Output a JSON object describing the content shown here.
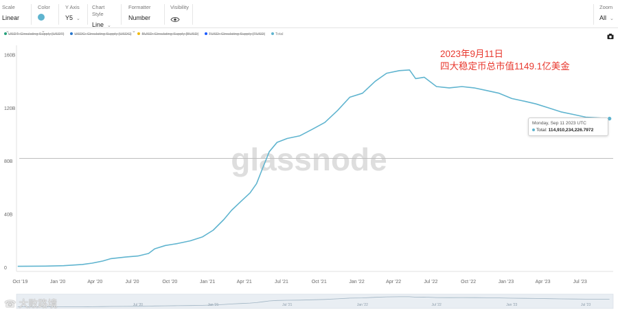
{
  "toolbar": {
    "scale": {
      "label": "Scale",
      "value": "Linear"
    },
    "color": {
      "label": "Color",
      "value_color": "#5fb4cf"
    },
    "y_axis": {
      "label": "Y Axis",
      "value": "Y5"
    },
    "chart_style": {
      "label": "Chart Style",
      "value": "Line"
    },
    "formatter": {
      "label": "Formatter",
      "value": "Number"
    },
    "visibility": {
      "label": "Visibility"
    },
    "zoom": {
      "label": "Zoom",
      "value": "All"
    }
  },
  "legend": [
    {
      "label": "USDT: Circulating Supply [USDT]",
      "color": "#26a17b",
      "active": false
    },
    {
      "label": "USDC: Circulating Supply [USDC]",
      "color": "#2775ca",
      "active": false
    },
    {
      "label": "BUSD: Circulating Supply [BUSD]",
      "color": "#f0b90b",
      "active": false
    },
    {
      "label": "TUSD: Circulating Supply [TUSD]",
      "color": "#1a5aff",
      "active": false
    },
    {
      "label": "Total",
      "color": "#5fb4cf",
      "active": true
    }
  ],
  "annotation": {
    "line1": "2023年9月11日",
    "line2": "四大稳定币总市值1149.1亿美金"
  },
  "tooltip": {
    "date": "Monday, Sep 11 2023 UTC",
    "label": "Total:",
    "value": "114,910,234,226.7972"
  },
  "watermark": {
    "text": "glassnode",
    "corner_text": "大败路境"
  },
  "navigator": {
    "labels": [
      "Jul '20",
      "Jan '21",
      "Jul '21",
      "Jan '22",
      "Jul '22",
      "Jan '23",
      "Jul '23"
    ]
  },
  "chart_data": {
    "type": "line",
    "series_name": "Total",
    "color": "#5fb4cf",
    "y_unit": "USD",
    "ylim": [
      0,
      170
    ],
    "y_ticks": [
      0,
      40,
      80,
      120,
      160
    ],
    "y_tick_labels": [
      "0",
      "40B",
      "80B",
      "120B",
      "160B"
    ],
    "x_tick_dates": [
      "2019-10-01",
      "2020-01-01",
      "2020-04-01",
      "2020-07-01",
      "2020-10-01",
      "2021-01-01",
      "2021-04-01",
      "2021-07-01",
      "2021-10-01",
      "2022-01-01",
      "2022-04-01",
      "2022-07-01",
      "2022-10-01",
      "2023-01-01",
      "2023-04-01",
      "2023-07-01"
    ],
    "x_tick_labels": [
      "Oct '19",
      "Jan '20",
      "Apr '20",
      "Jul '20",
      "Oct '20",
      "Jan '21",
      "Apr '21",
      "Jul '21",
      "Oct '21",
      "Jan '22",
      "Apr '22",
      "Jul '22",
      "Oct '22",
      "Jan '23",
      "Apr '23",
      "Jul '23"
    ],
    "xlim": [
      "2019-09-22",
      "2023-09-20"
    ],
    "reference_line_y": 85,
    "points": [
      [
        "2019-09-25",
        3.8
      ],
      [
        "2019-12-01",
        4.0
      ],
      [
        "2020-01-15",
        4.3
      ],
      [
        "2020-03-01",
        5.2
      ],
      [
        "2020-03-25",
        6.2
      ],
      [
        "2020-04-20",
        7.8
      ],
      [
        "2020-05-10",
        9.6
      ],
      [
        "2020-06-15",
        10.8
      ],
      [
        "2020-07-15",
        11.6
      ],
      [
        "2020-08-10",
        13.5
      ],
      [
        "2020-08-25",
        17.0
      ],
      [
        "2020-09-20",
        19.5
      ],
      [
        "2020-10-20",
        21.0
      ],
      [
        "2020-11-20",
        23.0
      ],
      [
        "2020-12-20",
        26.0
      ],
      [
        "2021-01-15",
        31.0
      ],
      [
        "2021-02-10",
        39.0
      ],
      [
        "2021-03-01",
        46.0
      ],
      [
        "2021-03-25",
        53.0
      ],
      [
        "2021-04-15",
        59.0
      ],
      [
        "2021-05-01",
        66.0
      ],
      [
        "2021-05-15",
        77.0
      ],
      [
        "2021-06-01",
        90.0
      ],
      [
        "2021-06-20",
        97.0
      ],
      [
        "2021-07-15",
        100.0
      ],
      [
        "2021-08-15",
        102.0
      ],
      [
        "2021-09-15",
        107.0
      ],
      [
        "2021-10-15",
        112.0
      ],
      [
        "2021-11-15",
        121.0
      ],
      [
        "2021-12-15",
        131.0
      ],
      [
        "2022-01-15",
        134.0
      ],
      [
        "2022-02-15",
        143.0
      ],
      [
        "2022-03-15",
        149.0
      ],
      [
        "2022-04-15",
        151.0
      ],
      [
        "2022-05-10",
        151.5
      ],
      [
        "2022-05-25",
        145.0
      ],
      [
        "2022-06-15",
        146.0
      ],
      [
        "2022-07-15",
        139.0
      ],
      [
        "2022-08-15",
        138.0
      ],
      [
        "2022-09-15",
        139.0
      ],
      [
        "2022-10-15",
        138.0
      ],
      [
        "2022-11-15",
        136.0
      ],
      [
        "2022-12-15",
        134.0
      ],
      [
        "2023-01-15",
        130.0
      ],
      [
        "2023-02-15",
        128.0
      ],
      [
        "2023-03-15",
        126.0
      ],
      [
        "2023-04-15",
        123.0
      ],
      [
        "2023-05-15",
        120.0
      ],
      [
        "2023-06-15",
        118.0
      ],
      [
        "2023-07-15",
        116.0
      ],
      [
        "2023-08-15",
        115.5
      ],
      [
        "2023-09-11",
        114.9
      ]
    ]
  }
}
